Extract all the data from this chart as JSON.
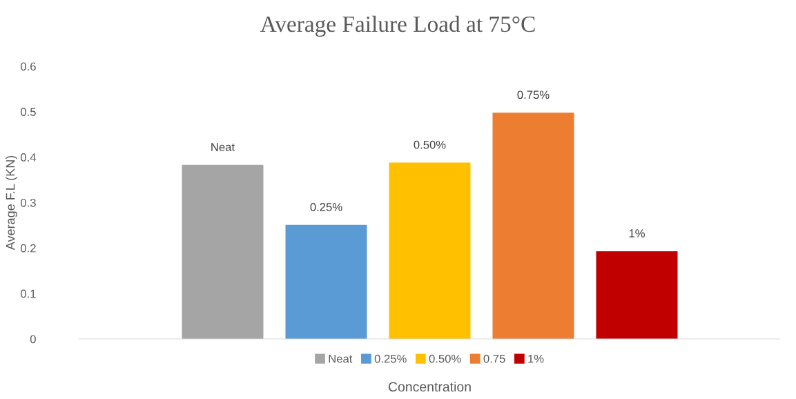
{
  "chart_data": {
    "type": "bar",
    "title": "Average Failure Load at 75°C",
    "xlabel": "Concentration",
    "ylabel": "Average F.L (KN)",
    "categories": [
      null
    ],
    "series": [
      {
        "name": "Neat",
        "color": "#a5a5a5",
        "values": [
          0.383
        ]
      },
      {
        "name": "0.25%",
        "color": "#5b9bd5",
        "values": [
          0.251
        ]
      },
      {
        "name": "0.50%",
        "color": "#ffc000",
        "values": [
          0.388
        ]
      },
      {
        "name": "0.75",
        "color": "#ed7d31",
        "values": [
          0.498
        ]
      },
      {
        "name": "1%",
        "color": "#c00000",
        "values": [
          0.193
        ]
      }
    ],
    "annotations": [
      "Neat",
      "0.25%",
      "0.50%",
      "0.75%",
      "1%"
    ],
    "ylim": [
      0,
      0.6
    ],
    "yticks": [
      0,
      0.1,
      0.2,
      0.3,
      0.4,
      0.5,
      0.6
    ],
    "grid": false,
    "legend": "bottom"
  }
}
